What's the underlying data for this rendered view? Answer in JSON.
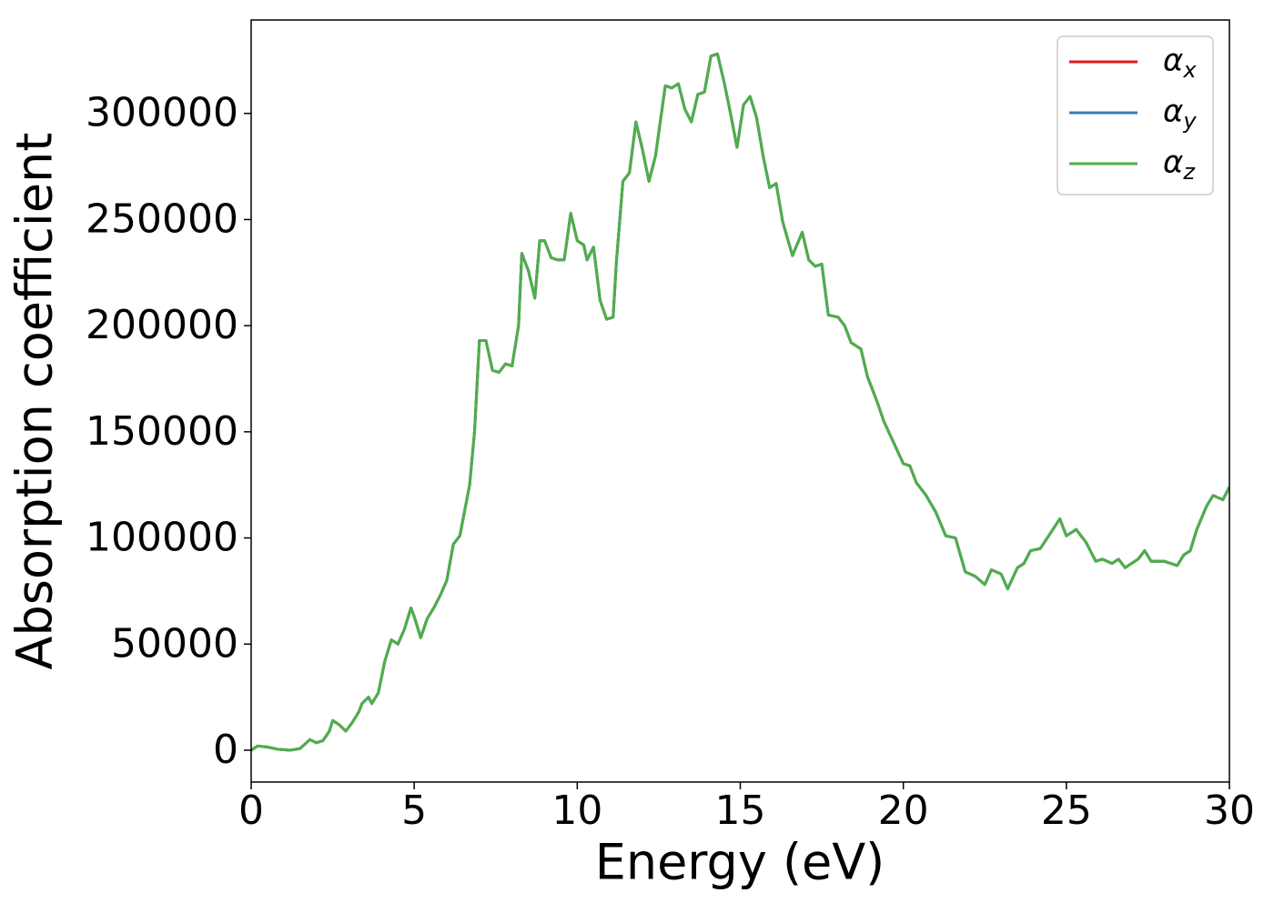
{
  "chart_data": {
    "type": "line",
    "xlabel": "Energy (eV)",
    "ylabel": "Absorption coefficient",
    "xlim": [
      0,
      30
    ],
    "ylim": [
      -15000,
      344000
    ],
    "xticks": [
      0,
      5,
      10,
      15,
      20,
      25,
      30
    ],
    "yticks": [
      0,
      50000,
      100000,
      150000,
      200000,
      250000,
      300000
    ],
    "legend": "upper right",
    "grid": false,
    "x": [
      0,
      0.2,
      0.5,
      0.8,
      1.2,
      1.5,
      1.8,
      2.0,
      2.2,
      2.4,
      2.5,
      2.7,
      2.9,
      3.1,
      3.3,
      3.4,
      3.6,
      3.7,
      3.9,
      4.1,
      4.3,
      4.5,
      4.7,
      4.9,
      5.0,
      5.2,
      5.4,
      5.6,
      5.8,
      6.0,
      6.2,
      6.4,
      6.7,
      6.85,
      7.0,
      7.2,
      7.4,
      7.6,
      7.8,
      8.0,
      8.2,
      8.3,
      8.5,
      8.7,
      8.85,
      9.0,
      9.2,
      9.4,
      9.6,
      9.8,
      10.0,
      10.2,
      10.3,
      10.5,
      10.7,
      10.9,
      11.1,
      11.2,
      11.4,
      11.6,
      11.8,
      12.0,
      12.2,
      12.4,
      12.7,
      12.9,
      13.1,
      13.3,
      13.5,
      13.7,
      13.9,
      14.1,
      14.3,
      14.5,
      14.7,
      14.9,
      15.1,
      15.3,
      15.5,
      15.7,
      15.9,
      16.1,
      16.3,
      16.6,
      16.9,
      17.1,
      17.3,
      17.5,
      17.7,
      18.0,
      18.2,
      18.4,
      18.7,
      18.9,
      19.2,
      19.4,
      19.7,
      20.0,
      20.2,
      20.4,
      20.7,
      21.0,
      21.3,
      21.6,
      21.9,
      22.2,
      22.5,
      22.7,
      23.0,
      23.2,
      23.5,
      23.7,
      23.9,
      24.2,
      24.5,
      24.8,
      25.0,
      25.3,
      25.6,
      25.9,
      26.1,
      26.4,
      26.6,
      26.8,
      27.2,
      27.4,
      27.6,
      28.0,
      28.4,
      28.6,
      28.8,
      29.0,
      29.3,
      29.5,
      29.8,
      30.0
    ],
    "series": [
      {
        "name": "α_x",
        "color": "#e41a1c",
        "values": [
          0,
          2000,
          1500,
          500,
          0,
          800,
          5000,
          3500,
          4500,
          9000,
          14000,
          12000,
          9000,
          13000,
          18000,
          22000,
          25000,
          22000,
          27000,
          42000,
          52000,
          50000,
          57000,
          67000,
          63000,
          53000,
          62000,
          67000,
          73000,
          80000,
          97000,
          101000,
          125000,
          150000,
          193000,
          193000,
          179000,
          178000,
          182000,
          181000,
          200000,
          234000,
          226000,
          213000,
          240000,
          240000,
          232000,
          231000,
          231000,
          253000,
          240000,
          238000,
          231000,
          237000,
          212000,
          203000,
          204000,
          230000,
          268000,
          272000,
          296000,
          283000,
          268000,
          280000,
          313000,
          312000,
          314000,
          302000,
          296000,
          309000,
          310000,
          327000,
          328000,
          315000,
          300000,
          284000,
          304000,
          308000,
          298000,
          280000,
          265000,
          267000,
          249000,
          233000,
          244000,
          231000,
          228000,
          229000,
          205000,
          204000,
          200000,
          192000,
          189000,
          176000,
          164000,
          155000,
          145000,
          135000,
          134000,
          126000,
          120000,
          112000,
          101000,
          100000,
          84000,
          82000,
          78000,
          85000,
          83000,
          76000,
          86000,
          88000,
          94000,
          95000,
          102000,
          109000,
          101000,
          104000,
          98000,
          89000,
          90000,
          88000,
          90000,
          86000,
          90000,
          94000,
          89000,
          89000,
          87000,
          92000,
          94000,
          104000,
          115000,
          120000,
          118000,
          124000
        ]
      },
      {
        "name": "α_y",
        "color": "#377eb8",
        "values": [
          0,
          2000,
          1500,
          500,
          0,
          800,
          5000,
          3500,
          4500,
          9000,
          14000,
          12000,
          9000,
          13000,
          18000,
          22000,
          25000,
          22000,
          27000,
          42000,
          52000,
          50000,
          57000,
          67000,
          63000,
          53000,
          62000,
          67000,
          73000,
          80000,
          97000,
          101000,
          125000,
          150000,
          193000,
          193000,
          179000,
          178000,
          182000,
          181000,
          200000,
          234000,
          226000,
          213000,
          240000,
          240000,
          232000,
          231000,
          231000,
          253000,
          240000,
          238000,
          231000,
          237000,
          212000,
          203000,
          204000,
          230000,
          268000,
          272000,
          296000,
          283000,
          268000,
          280000,
          313000,
          312000,
          314000,
          302000,
          296000,
          309000,
          310000,
          327000,
          328000,
          315000,
          300000,
          284000,
          304000,
          308000,
          298000,
          280000,
          265000,
          267000,
          249000,
          233000,
          244000,
          231000,
          228000,
          229000,
          205000,
          204000,
          200000,
          192000,
          189000,
          176000,
          164000,
          155000,
          145000,
          135000,
          134000,
          126000,
          120000,
          112000,
          101000,
          100000,
          84000,
          82000,
          78000,
          85000,
          83000,
          76000,
          86000,
          88000,
          94000,
          95000,
          102000,
          109000,
          101000,
          104000,
          98000,
          89000,
          90000,
          88000,
          90000,
          86000,
          90000,
          94000,
          89000,
          89000,
          87000,
          92000,
          94000,
          104000,
          115000,
          120000,
          118000,
          124000
        ]
      },
      {
        "name": "α_z",
        "color": "#4daf4a",
        "values": [
          0,
          2000,
          1500,
          500,
          0,
          800,
          5000,
          3500,
          4500,
          9000,
          14000,
          12000,
          9000,
          13000,
          18000,
          22000,
          25000,
          22000,
          27000,
          42000,
          52000,
          50000,
          57000,
          67000,
          63000,
          53000,
          62000,
          67000,
          73000,
          80000,
          97000,
          101000,
          125000,
          150000,
          193000,
          193000,
          179000,
          178000,
          182000,
          181000,
          200000,
          234000,
          226000,
          213000,
          240000,
          240000,
          232000,
          231000,
          231000,
          253000,
          240000,
          238000,
          231000,
          237000,
          212000,
          203000,
          204000,
          230000,
          268000,
          272000,
          296000,
          283000,
          268000,
          280000,
          313000,
          312000,
          314000,
          302000,
          296000,
          309000,
          310000,
          327000,
          328000,
          315000,
          300000,
          284000,
          304000,
          308000,
          298000,
          280000,
          265000,
          267000,
          249000,
          233000,
          244000,
          231000,
          228000,
          229000,
          205000,
          204000,
          200000,
          192000,
          189000,
          176000,
          164000,
          155000,
          145000,
          135000,
          134000,
          126000,
          120000,
          112000,
          101000,
          100000,
          84000,
          82000,
          78000,
          85000,
          83000,
          76000,
          86000,
          88000,
          94000,
          95000,
          102000,
          109000,
          101000,
          104000,
          98000,
          89000,
          90000,
          88000,
          90000,
          86000,
          90000,
          94000,
          89000,
          89000,
          87000,
          92000,
          94000,
          104000,
          115000,
          120000,
          118000,
          124000
        ]
      }
    ]
  }
}
